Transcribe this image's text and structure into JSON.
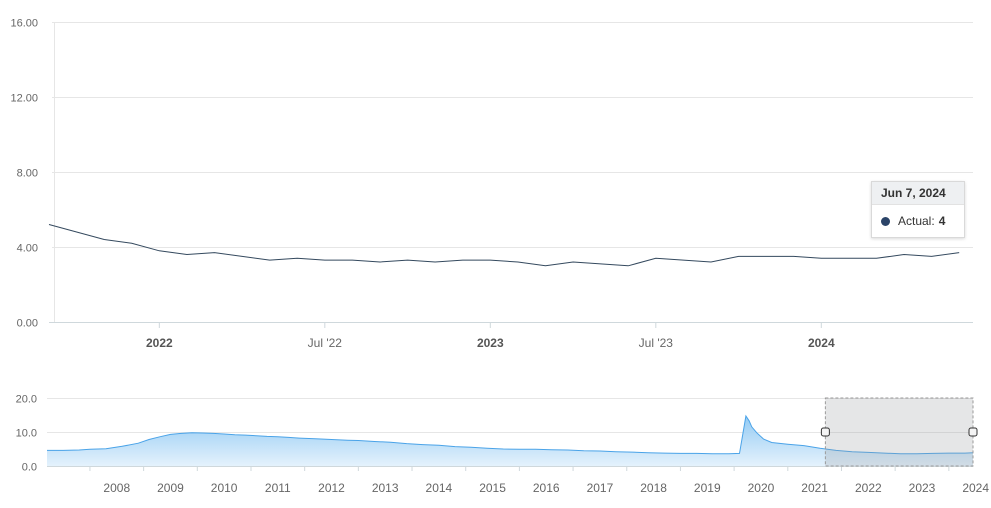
{
  "chart_data": [
    {
      "type": "line",
      "series": [
        {
          "name": "Actual",
          "color": "#34495e",
          "x": [
            "2021-09",
            "2021-10",
            "2021-11",
            "2021-12",
            "2022-01",
            "2022-02",
            "2022-03",
            "2022-04",
            "2022-05",
            "2022-06",
            "2022-07",
            "2022-08",
            "2022-09",
            "2022-10",
            "2022-11",
            "2022-12",
            "2023-01",
            "2023-02",
            "2023-03",
            "2023-04",
            "2023-05",
            "2023-06",
            "2023-07",
            "2023-08",
            "2023-09",
            "2023-10",
            "2023-11",
            "2023-12",
            "2024-01",
            "2024-02",
            "2024-03",
            "2024-04",
            "2024-05",
            "2024-06"
          ],
          "values": [
            5.2,
            4.8,
            4.4,
            4.2,
            3.8,
            3.6,
            3.7,
            3.5,
            3.3,
            3.4,
            3.3,
            3.3,
            3.2,
            3.3,
            3.2,
            3.3,
            3.3,
            3.2,
            3.0,
            3.2,
            3.1,
            3.0,
            3.4,
            3.3,
            3.2,
            3.5,
            3.5,
            3.5,
            3.4,
            3.4,
            3.4,
            3.6,
            3.5,
            3.7
          ]
        }
      ],
      "yticks": [
        "0.00",
        "4.00",
        "8.00",
        "12.00",
        "16.00"
      ],
      "ylim": [
        0,
        16
      ],
      "xticks": [
        {
          "label": "2022",
          "major": true
        },
        {
          "label": "Jul '22",
          "major": false
        },
        {
          "label": "2023",
          "major": true
        },
        {
          "label": "Jul '23",
          "major": false
        },
        {
          "label": "2024",
          "major": true
        }
      ],
      "grid": true,
      "tooltip": {
        "date": "Jun 7, 2024",
        "series": "Actual:",
        "value": "4"
      }
    },
    {
      "type": "area",
      "role": "navigator",
      "color": "#4aa3e8",
      "x": [
        2007.2,
        2007.5,
        2007.8,
        2008.0,
        2008.3,
        2008.6,
        2008.9,
        2009.1,
        2009.3,
        2009.5,
        2009.7,
        2009.9,
        2010.1,
        2010.3,
        2010.5,
        2010.7,
        2010.9,
        2011.1,
        2011.3,
        2011.5,
        2011.7,
        2011.9,
        2012.2,
        2012.5,
        2012.8,
        2013.0,
        2013.3,
        2013.6,
        2013.9,
        2014.2,
        2014.5,
        2014.8,
        2015.1,
        2015.4,
        2015.7,
        2016.0,
        2016.3,
        2016.6,
        2016.9,
        2017.2,
        2017.5,
        2017.8,
        2018.1,
        2018.4,
        2018.7,
        2019.0,
        2019.3,
        2019.6,
        2019.9,
        2020.1,
        2020.22,
        2020.28,
        2020.33,
        2020.42,
        2020.55,
        2020.7,
        2021.0,
        2021.3,
        2021.6,
        2021.9,
        2022.2,
        2022.5,
        2022.8,
        2023.1,
        2023.4,
        2023.7,
        2024.0,
        2024.3,
        2024.45
      ],
      "values": [
        4.6,
        4.6,
        4.7,
        4.9,
        5.1,
        5.8,
        6.7,
        7.8,
        8.6,
        9.3,
        9.6,
        9.8,
        9.7,
        9.6,
        9.4,
        9.2,
        9.1,
        8.9,
        8.7,
        8.6,
        8.4,
        8.2,
        8.0,
        7.8,
        7.6,
        7.5,
        7.2,
        7.0,
        6.6,
        6.3,
        6.1,
        5.7,
        5.5,
        5.2,
        5.0,
        4.9,
        4.9,
        4.8,
        4.7,
        4.5,
        4.4,
        4.2,
        4.1,
        3.9,
        3.8,
        3.7,
        3.7,
        3.6,
        3.6,
        3.7,
        14.7,
        13.3,
        11.5,
        9.8,
        7.9,
        6.9,
        6.4,
        6.0,
        5.2,
        4.6,
        4.2,
        4.0,
        3.8,
        3.6,
        3.6,
        3.7,
        3.8,
        3.8,
        3.9
      ],
      "yticks": [
        "0.0",
        "10.0",
        "20.0"
      ],
      "ylim": [
        0,
        20
      ],
      "xticks": [
        "2008",
        "2009",
        "2010",
        "2011",
        "2012",
        "2013",
        "2014",
        "2015",
        "2016",
        "2017",
        "2018",
        "2019",
        "2020",
        "2021",
        "2022",
        "2023",
        "2024"
      ],
      "selection": {
        "from": 2021.7,
        "to": 2024.45
      }
    }
  ]
}
